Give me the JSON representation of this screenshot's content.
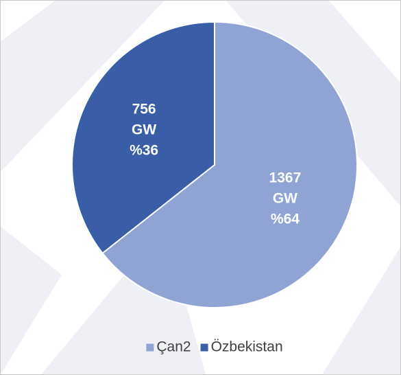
{
  "chart_data": {
    "type": "pie",
    "categories": [
      "Çan2",
      "Özbekistan"
    ],
    "values": [
      1367,
      756
    ],
    "unit": "GW",
    "percent_labels": [
      "%64",
      "%36"
    ],
    "colors": [
      "#8fa3d4",
      "#3a5da8"
    ],
    "legend": "bottom"
  }
}
